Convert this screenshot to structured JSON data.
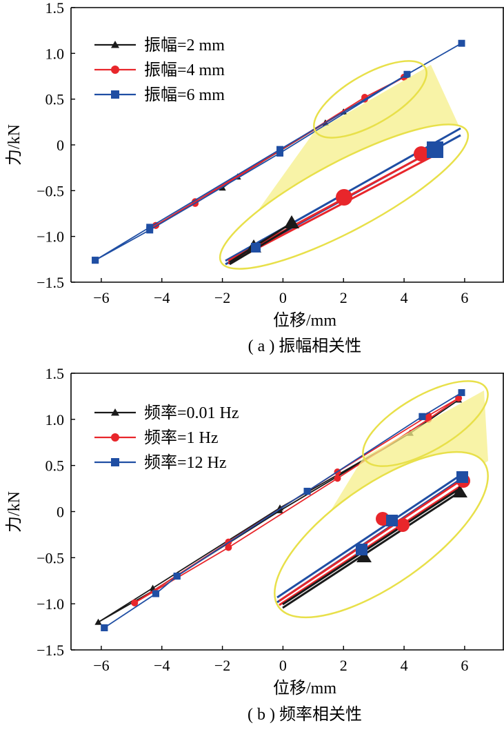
{
  "colors": {
    "black": "#1a1a1a",
    "red": "#e8262b",
    "blue": "#1f4ea3",
    "highlight": "#f2ea6a",
    "highlight_fill": "#f5ef8a"
  },
  "chart_data": [
    {
      "type": "line",
      "caption": "( a ) 振幅相关性",
      "xlabel": "位移/mm",
      "ylabel": "力/kN",
      "xlim": [
        -7,
        7.3
      ],
      "ylim": [
        -1.5,
        1.5
      ],
      "xticks": [
        "-6",
        "-4",
        "-2",
        "0",
        "2",
        "4",
        "6"
      ],
      "yticks": [
        "1.5",
        "1.0",
        "0.5",
        "0",
        "-0.5",
        "-1.0",
        "-1.5"
      ],
      "grid": false,
      "legend_position": "top-left",
      "series": [
        {
          "name": "振幅=2 mm",
          "color": "black",
          "marker": "triangle",
          "x": [
            -2.0,
            -1.5,
            1.4,
            2.0,
            2.0,
            1.4,
            -1.5,
            -2.0
          ],
          "y": [
            -0.47,
            -0.35,
            0.24,
            0.36,
            0.36,
            0.24,
            -0.35,
            -0.47
          ]
        },
        {
          "name": "振幅=4 mm",
          "color": "red",
          "marker": "circle",
          "x": [
            -4.2,
            -2.9,
            2.7,
            4.0,
            4.0,
            2.7,
            -2.9,
            -4.2
          ],
          "y": [
            -0.88,
            -0.62,
            0.5,
            0.74,
            0.74,
            0.52,
            -0.64,
            -0.88
          ]
        },
        {
          "name": "振幅=6 mm",
          "color": "blue",
          "marker": "square",
          "x": [
            -6.2,
            -4.4,
            -0.1,
            4.1,
            5.9,
            4.1,
            -0.1,
            -4.4,
            -6.2
          ],
          "y": [
            -1.26,
            -0.9,
            -0.05,
            0.77,
            1.11,
            0.77,
            -0.09,
            -0.93,
            -1.26
          ]
        }
      ]
    },
    {
      "type": "line",
      "caption": "( b ) 频率相关性",
      "xlabel": "位移/mm",
      "ylabel": "力/kN",
      "xlim": [
        -7,
        7.3
      ],
      "ylim": [
        -1.5,
        1.5
      ],
      "xticks": [
        "-6",
        "-4",
        "-2",
        "0",
        "2",
        "4",
        "6"
      ],
      "yticks": [
        "1.5",
        "1.0",
        "0.5",
        "0",
        "-0.5",
        "-1.0",
        "-1.5"
      ],
      "grid": false,
      "legend_position": "top-left",
      "series": [
        {
          "name": "频率=0.01 Hz",
          "color": "black",
          "marker": "triangle",
          "x": [
            -6.1,
            -4.3,
            -0.1,
            4.2,
            5.8,
            4.2,
            -0.1,
            -4.3,
            -6.1
          ],
          "y": [
            -1.2,
            -0.83,
            0.04,
            0.85,
            1.21,
            0.85,
            0.01,
            -0.86,
            -1.2
          ]
        },
        {
          "name": "频率=1 Hz",
          "color": "red",
          "marker": "circle",
          "x": [
            -4.9,
            -1.8,
            1.8,
            4.8,
            5.8,
            4.8,
            1.8,
            -1.8,
            -4.9
          ],
          "y": [
            -0.99,
            -0.33,
            0.43,
            1.04,
            1.23,
            1.0,
            0.36,
            -0.39,
            -0.99
          ]
        },
        {
          "name": "频率=12 Hz",
          "color": "blue",
          "marker": "square",
          "x": [
            -5.9,
            -4.2,
            -3.5,
            0.8,
            4.6,
            5.9,
            4.6,
            0.8,
            -3.5,
            -4.2,
            -5.9
          ],
          "y": [
            -1.26,
            -0.89,
            -0.7,
            0.22,
            1.03,
            1.29,
            1.03,
            0.22,
            -0.7,
            -0.89,
            -1.26
          ]
        }
      ]
    }
  ]
}
